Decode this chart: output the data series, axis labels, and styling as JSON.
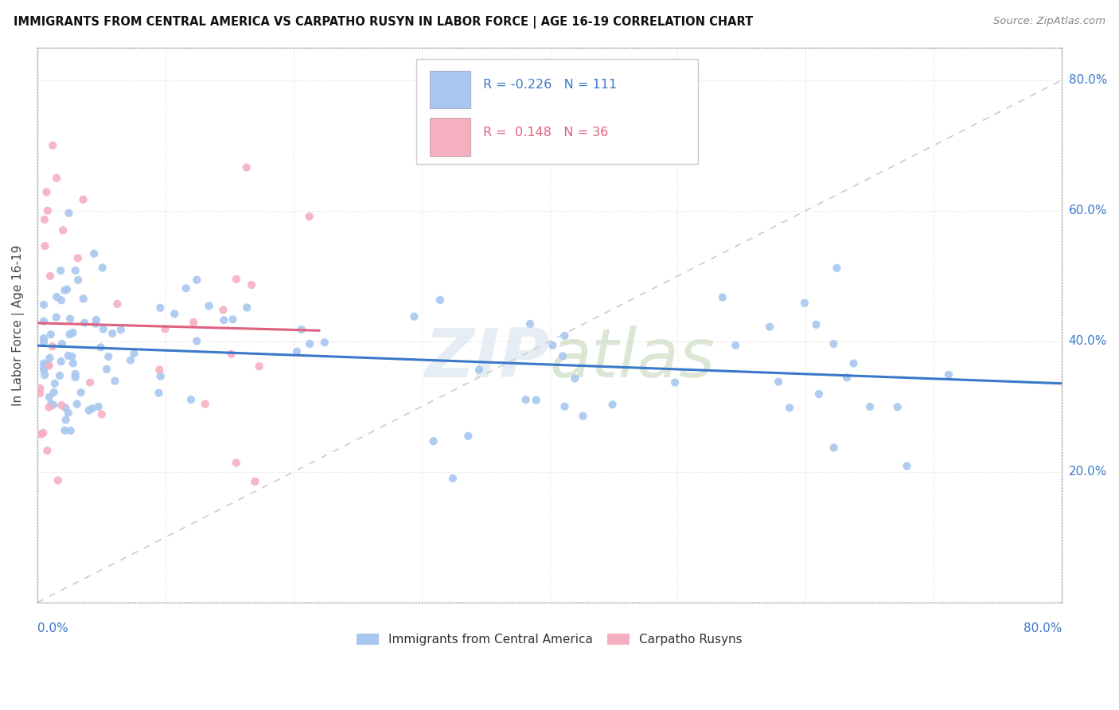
{
  "title": "IMMIGRANTS FROM CENTRAL AMERICA VS CARPATHO RUSYN IN LABOR FORCE | AGE 16-19 CORRELATION CHART",
  "source": "Source: ZipAtlas.com",
  "ylabel": "In Labor Force | Age 16-19",
  "blue_R": -0.226,
  "blue_N": 111,
  "pink_R": 0.148,
  "pink_N": 36,
  "blue_color": "#a8c8f0",
  "pink_color": "#f5afc0",
  "blue_line_color": "#3a78c9",
  "pink_line_color": "#e06080",
  "diagonal_color": "#cccccc",
  "background_color": "#ffffff",
  "legend_blue_label": "Immigrants from Central America",
  "legend_pink_label": "Carpatho Rusyns",
  "xlim": [
    0.0,
    0.8
  ],
  "ylim": [
    0.0,
    0.85
  ],
  "ytick_vals": [
    0.2,
    0.4,
    0.6,
    0.8
  ],
  "ytick_labels": [
    "20.0%",
    "40.0%",
    "60.0%",
    "80.0%"
  ]
}
